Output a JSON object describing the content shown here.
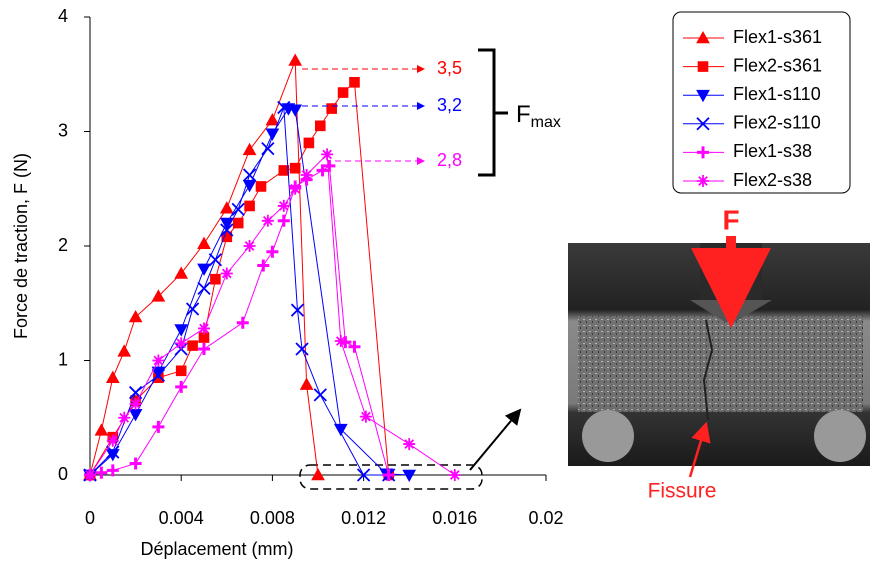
{
  "chart_data": {
    "type": "line",
    "xlabel": "Déplacement (mm)",
    "ylabel": "Force de traction, F (N)",
    "xlim": [
      0,
      0.02
    ],
    "ylim": [
      0,
      4
    ],
    "xticks": [
      0,
      0.004,
      0.008,
      0.012,
      0.016,
      0.02
    ],
    "yticks": [
      0,
      1,
      2,
      3,
      4
    ],
    "legend": "top-right",
    "series": [
      {
        "name": "Flex1-s361",
        "color": "#ff0000",
        "marker": "triangle-up",
        "x": [
          0,
          0.0005,
          0.001,
          0.0015,
          0.002,
          0.003,
          0.004,
          0.005,
          0.006,
          0.007,
          0.008,
          0.009,
          0.0095,
          0.01
        ],
        "values": [
          0,
          0.39,
          0.85,
          1.08,
          1.38,
          1.56,
          1.76,
          2.02,
          2.33,
          2.84,
          3.1,
          3.62,
          0.79,
          0
        ]
      },
      {
        "name": "Flex2-s361",
        "color": "#ff0000",
        "marker": "square",
        "x": [
          0,
          0.001,
          0.002,
          0.003,
          0.004,
          0.0045,
          0.005,
          0.0055,
          0.006,
          0.0065,
          0.007,
          0.0075,
          0.0085,
          0.009,
          0.0096,
          0.0101,
          0.0106,
          0.0111,
          0.0116,
          0.0131
        ],
        "values": [
          0,
          0.33,
          0.65,
          0.85,
          0.91,
          1.13,
          1.2,
          1.71,
          2.08,
          2.2,
          2.35,
          2.52,
          2.66,
          2.68,
          2.9,
          3.05,
          3.2,
          3.34,
          3.43,
          0
        ]
      },
      {
        "name": "Flex1-s110",
        "color": "#0000ff",
        "marker": "triangle-down",
        "x": [
          0,
          0.001,
          0.002,
          0.003,
          0.004,
          0.005,
          0.006,
          0.007,
          0.008,
          0.0087,
          0.009,
          0.011,
          0.013,
          0.014
        ],
        "values": [
          0,
          0.18,
          0.53,
          0.9,
          1.27,
          1.8,
          2.2,
          2.53,
          2.98,
          3.2,
          3.19,
          0.4,
          0.01,
          0
        ]
      },
      {
        "name": "Flex2-s110",
        "color": "#0000ff",
        "marker": "x",
        "x": [
          0,
          0.001,
          0.002,
          0.003,
          0.004,
          0.0045,
          0.005,
          0.0055,
          0.006,
          0.0065,
          0.007,
          0.0078,
          0.0085,
          0.0091,
          0.0093,
          0.0101,
          0.012,
          0.0131
        ],
        "values": [
          0,
          0.2,
          0.72,
          0.87,
          1.1,
          1.45,
          1.63,
          1.88,
          2.14,
          2.32,
          2.62,
          2.85,
          3.21,
          1.44,
          1.1,
          0.7,
          0,
          0
        ]
      },
      {
        "name": "Flex1-s38",
        "color": "#ff00ff",
        "marker": "plus",
        "x": [
          0,
          0.0005,
          0.001,
          0.002,
          0.003,
          0.004,
          0.005,
          0.0067,
          0.0076,
          0.008,
          0.0085,
          0.009,
          0.0095,
          0.0102,
          0.0105,
          0.0112,
          0.0116,
          0.0131
        ],
        "values": [
          0,
          0.02,
          0.04,
          0.1,
          0.42,
          0.77,
          1.1,
          1.33,
          1.83,
          1.95,
          2.22,
          2.52,
          2.58,
          2.66,
          2.7,
          1.16,
          1.12,
          0
        ]
      },
      {
        "name": "Flex2-s38",
        "color": "#ff00ff",
        "marker": "star",
        "x": [
          0,
          0.001,
          0.0015,
          0.002,
          0.003,
          0.004,
          0.005,
          0.006,
          0.007,
          0.0078,
          0.0085,
          0.009,
          0.0095,
          0.0104,
          0.011,
          0.0121,
          0.014,
          0.016
        ],
        "values": [
          0,
          0.3,
          0.5,
          0.62,
          1.0,
          1.15,
          1.28,
          1.76,
          2.0,
          2.22,
          2.35,
          2.5,
          2.62,
          2.8,
          1.17,
          0.51,
          0.27,
          0
        ]
      }
    ],
    "annotations": [
      {
        "text": "3,5",
        "color": "#ff0000"
      },
      {
        "text": "3,2",
        "color": "#0000ff"
      },
      {
        "text": "2,8",
        "color": "#ff00ff"
      }
    ],
    "bracket_label": {
      "main": "F",
      "sub": "max"
    },
    "inset": {
      "force_label": "F",
      "crack_label": "Fissure"
    }
  }
}
